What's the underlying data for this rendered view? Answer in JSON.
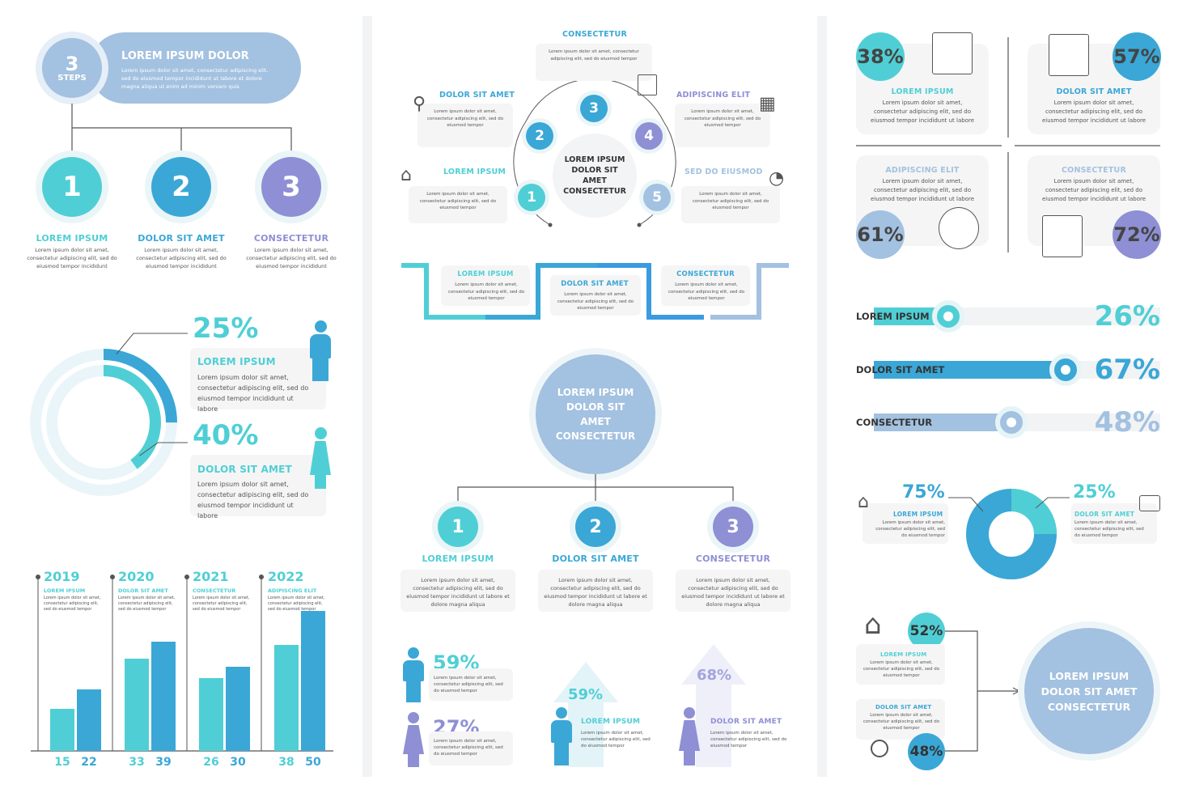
{
  "colors": {
    "teal": "#4fcfd5",
    "blue": "#3aa7d6",
    "purple": "#8e8fd4",
    "lightblue": "#a3c1e0",
    "gray": "#f5f5f5"
  },
  "lorem_short": "Lorem ipsum dolor sit amet, consectetur adipiscing elit, sed do eiusmod tempor incididunt",
  "lorem_long": "Lorem ipsum dolor sit amet, consectetur adipiscing elit, sed do eiusmod tempor incididunt ut labore",
  "lorem_magna": "Lorem ipsum dolor sit amet, consectetur adipiscing elit, sed do eiusmod tempor incididunt ut labore et dolore magna aliqua",
  "lorem_ut": "Lorem ipsum dolor sit amet, consectetur adipiscing elit, sed do eiusmod tempor incididunt ut labore et dolore magna aliqua ut enim ad minim veniam quis",
  "lorem_tiny": "Lorem ipsum dolor sit amet, consectetur adipiscing elit, sed do eiusmod tempor",
  "steps": {
    "number": "3",
    "label": "STEPS",
    "title": "LOREM IPSUM DOLOR",
    "items": [
      {
        "num": "1",
        "title": "LOREM IPSUM"
      },
      {
        "num": "2",
        "title": "DOLOR SIT AMET"
      },
      {
        "num": "3",
        "title": "CONSECTETUR"
      }
    ]
  },
  "gender": {
    "male_pct": "25%",
    "male_title": "LOREM IPSUM",
    "female_pct": "40%",
    "female_title": "DOLOR SIT AMET"
  },
  "years": {
    "items": [
      {
        "year": "2019",
        "title": "LOREM IPSUM",
        "v1": 15,
        "v2": 22,
        "l1": "15",
        "l2": "22"
      },
      {
        "year": "2020",
        "title": "DOLOR SIT AMET",
        "v1": 33,
        "v2": 39,
        "l1": "33",
        "l2": "39"
      },
      {
        "year": "2021",
        "title": "CONSECTETUR",
        "v1": 26,
        "v2": 30,
        "l1": "26",
        "l2": "30"
      },
      {
        "year": "2022",
        "title": "ADIPISCING ELIT",
        "v1": 38,
        "v2": 50,
        "l1": "38",
        "l2": "50"
      }
    ]
  },
  "cycle": {
    "center": "LOREM IPSUM DOLOR SIT AMET CONSECTETUR",
    "items": [
      {
        "num": "1",
        "title": "LOREM IPSUM"
      },
      {
        "num": "2",
        "title": "DOLOR SIT AMET"
      },
      {
        "num": "3",
        "title": "CONSECTETUR"
      },
      {
        "num": "4",
        "title": "ADIPISCING ELIT"
      },
      {
        "num": "5",
        "title": "SED DO EIUSMOD"
      }
    ]
  },
  "flow": {
    "items": [
      {
        "title": "LOREM IPSUM"
      },
      {
        "title": "DOLOR SIT AMET"
      },
      {
        "title": "CONSECTETUR"
      }
    ]
  },
  "tree": {
    "center": "LOREM IPSUM DOLOR SIT AMET CONSECTETUR",
    "items": [
      {
        "num": "1",
        "title": "LOREM IPSUM"
      },
      {
        "num": "2",
        "title": "DOLOR SIT AMET"
      },
      {
        "num": "3",
        "title": "CONSECTETUR"
      }
    ]
  },
  "people": {
    "male_pct": "59%",
    "female_pct": "27%",
    "arrow1_pct": "59%",
    "arrow1_title": "LOREM IPSUM",
    "arrow2_pct": "68%",
    "arrow2_title": "DOLOR SIT AMET"
  },
  "quad": {
    "items": [
      {
        "pct": "38%",
        "title": "LOREM IPSUM",
        "value": 38
      },
      {
        "pct": "57%",
        "title": "DOLOR SIT AMET",
        "value": 57
      },
      {
        "pct": "61%",
        "title": "ADIPISCING ELIT",
        "value": 61
      },
      {
        "pct": "72%",
        "title": "CONSECTETUR",
        "value": 72
      }
    ]
  },
  "progress": {
    "items": [
      {
        "label": "LOREM IPSUM",
        "pct": "26%",
        "value": 26
      },
      {
        "label": "DOLOR SIT AMET",
        "pct": "67%",
        "value": 67
      },
      {
        "label": "CONSECTETUR",
        "pct": "48%",
        "value": 48
      }
    ]
  },
  "donut": {
    "left_pct": "75%",
    "left_title": "LOREM IPSUM",
    "right_pct": "25%",
    "right_title": "DOLOR SIT AMET",
    "value": 75
  },
  "merge": {
    "top_pct": "52%",
    "top_title": "LOREM IPSUM",
    "bottom_pct": "48%",
    "bottom_title": "DOLOR SIT AMET",
    "center": "LOREM IPSUM DOLOR SIT AMET CONSECTETUR"
  }
}
